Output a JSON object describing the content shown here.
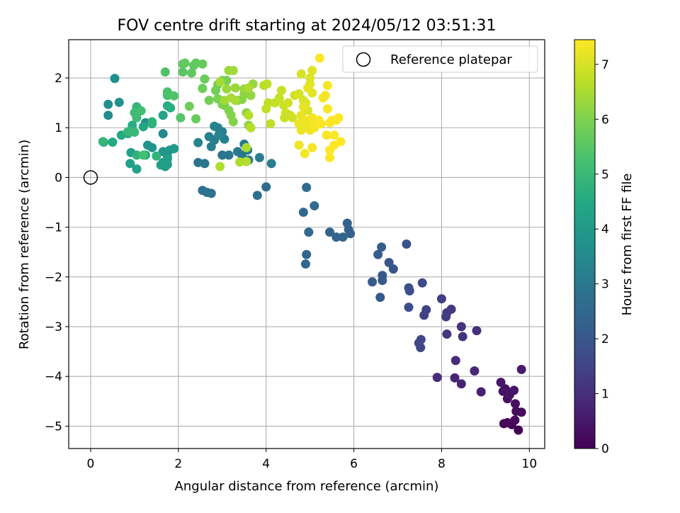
{
  "chart_data": {
    "type": "scatter",
    "title": "FOV centre drift starting at 2024/05/12 03:51:31",
    "xlabel": "Angular distance from reference (arcmin)",
    "ylabel": "Rotation from reference (arcmin)",
    "xlim": [
      -0.5,
      10.35
    ],
    "ylim": [
      -5.45,
      2.77
    ],
    "xticks": [
      0,
      2,
      4,
      6,
      8,
      10
    ],
    "yticks": [
      -5,
      -4,
      -3,
      -2,
      -1,
      0,
      1,
      2
    ],
    "xtick_labels": [
      "0",
      "2",
      "4",
      "6",
      "8",
      "10"
    ],
    "ytick_labels": [
      "−5",
      "−4",
      "−3",
      "−2",
      "−1",
      "0",
      "1",
      "2"
    ],
    "grid": true,
    "legend": {
      "position": "top-right",
      "label": "Reference platepar"
    },
    "reference_point": {
      "x": 0,
      "y": 0
    },
    "colorbar": {
      "label": "Hours from first FF file",
      "colormap": "viridis",
      "range": [
        0,
        7.45
      ],
      "ticks": [
        0,
        1,
        2,
        3,
        4,
        5,
        6,
        7
      ],
      "tick_labels": [
        "0",
        "1",
        "2",
        "3",
        "4",
        "5",
        "6",
        "7"
      ]
    },
    "points": [
      [
        9.75,
        -5.08,
        0.0
      ],
      [
        9.6,
        -4.97,
        0.05
      ],
      [
        9.5,
        -4.93,
        0.1
      ],
      [
        9.42,
        -4.95,
        0.12
      ],
      [
        9.67,
        -4.88,
        0.15
      ],
      [
        9.82,
        -4.72,
        0.2
      ],
      [
        9.7,
        -4.7,
        0.22
      ],
      [
        9.68,
        -4.55,
        0.28
      ],
      [
        9.5,
        -4.45,
        0.3
      ],
      [
        9.4,
        -4.3,
        0.33
      ],
      [
        9.45,
        -4.25,
        0.36
      ],
      [
        9.55,
        -4.37,
        0.4
      ],
      [
        9.65,
        -4.28,
        0.42
      ],
      [
        9.35,
        -4.12,
        0.48
      ],
      [
        9.82,
        -3.86,
        0.55
      ],
      [
        8.9,
        -4.31,
        0.65
      ],
      [
        8.45,
        -4.15,
        0.72
      ],
      [
        8.3,
        -4.03,
        0.78
      ],
      [
        8.75,
        -3.89,
        0.85
      ],
      [
        7.9,
        -4.02,
        0.9
      ],
      [
        8.32,
        -3.68,
        0.95
      ],
      [
        8.8,
        -3.08,
        1.05
      ],
      [
        8.45,
        -3.0,
        1.1
      ],
      [
        8.48,
        -3.2,
        1.12
      ],
      [
        8.12,
        -3.15,
        1.18
      ],
      [
        8.22,
        -2.65,
        1.25
      ],
      [
        8.1,
        -2.8,
        1.3
      ],
      [
        8.12,
        -2.72,
        1.32
      ],
      [
        8.0,
        -2.44,
        1.38
      ],
      [
        7.65,
        -2.66,
        1.45
      ],
      [
        7.6,
        -2.77,
        1.48
      ],
      [
        7.52,
        -3.42,
        1.55
      ],
      [
        7.48,
        -3.33,
        1.6
      ],
      [
        7.53,
        -3.26,
        1.62
      ],
      [
        7.56,
        -2.12,
        1.68
      ],
      [
        7.25,
        -2.61,
        1.75
      ],
      [
        7.27,
        -2.28,
        1.8
      ],
      [
        7.25,
        -2.22,
        1.82
      ],
      [
        7.2,
        -1.34,
        1.88
      ],
      [
        6.9,
        -1.84,
        1.95
      ],
      [
        6.8,
        -1.71,
        2.0
      ],
      [
        6.65,
        -1.97,
        2.05
      ],
      [
        6.65,
        -2.07,
        2.08
      ],
      [
        6.6,
        -2.41,
        2.1
      ],
      [
        6.42,
        -2.1,
        2.12
      ],
      [
        6.55,
        -1.55,
        2.18
      ],
      [
        6.63,
        -1.4,
        2.22
      ],
      [
        5.92,
        -1.13,
        2.28
      ],
      [
        5.85,
        -0.92,
        2.32
      ],
      [
        5.88,
        -1.05,
        2.35
      ],
      [
        5.75,
        -1.2,
        2.38
      ],
      [
        5.6,
        -1.2,
        2.4
      ],
      [
        5.45,
        -1.1,
        2.42
      ],
      [
        4.92,
        -1.55,
        2.45
      ],
      [
        4.9,
        -1.74,
        2.48
      ],
      [
        4.97,
        -1.1,
        2.5
      ],
      [
        4.85,
        -0.7,
        2.52
      ],
      [
        5.1,
        -0.57,
        2.55
      ],
      [
        4.92,
        -0.2,
        2.58
      ],
      [
        4.0,
        -0.19,
        2.65
      ],
      [
        3.8,
        -0.36,
        2.7
      ],
      [
        2.55,
        -0.26,
        2.75
      ],
      [
        2.65,
        -0.3,
        2.78
      ],
      [
        2.75,
        -0.32,
        2.8
      ],
      [
        2.45,
        0.3,
        2.85
      ],
      [
        2.6,
        0.28,
        2.88
      ],
      [
        3.0,
        0.45,
        2.9
      ],
      [
        3.15,
        0.45,
        2.95
      ],
      [
        3.35,
        0.52,
        3.0
      ],
      [
        3.45,
        0.45,
        3.02
      ],
      [
        3.5,
        0.67,
        3.05
      ],
      [
        3.58,
        0.55,
        3.08
      ],
      [
        3.6,
        0.35,
        3.1
      ],
      [
        3.85,
        0.4,
        3.12
      ],
      [
        4.12,
        0.28,
        3.15
      ],
      [
        2.75,
        0.62,
        3.18
      ],
      [
        2.82,
        0.75,
        3.2
      ],
      [
        3.0,
        0.92,
        3.22
      ],
      [
        3.05,
        0.77,
        3.25
      ],
      [
        2.7,
        0.82,
        3.28
      ],
      [
        2.82,
        1.03,
        3.3
      ],
      [
        2.9,
        1.0,
        3.32
      ],
      [
        2.92,
        0.85,
        3.35
      ],
      [
        2.45,
        0.7,
        3.38
      ],
      [
        1.65,
        0.88,
        3.45
      ],
      [
        1.05,
        1.35,
        3.5
      ],
      [
        1.25,
        1.1,
        3.55
      ],
      [
        0.4,
        1.25,
        3.6
      ],
      [
        0.4,
        1.47,
        3.65
      ],
      [
        0.55,
        1.99,
        3.7
      ],
      [
        0.65,
        1.51,
        3.75
      ],
      [
        1.3,
        0.65,
        3.8
      ],
      [
        1.4,
        0.6,
        3.85
      ],
      [
        1.65,
        0.52,
        3.9
      ],
      [
        1.75,
        0.42,
        3.95
      ],
      [
        1.8,
        0.55,
        4.0
      ],
      [
        1.9,
        0.58,
        4.02
      ],
      [
        1.65,
        0.3,
        4.05
      ],
      [
        1.75,
        0.26,
        4.1
      ],
      [
        1.7,
        0.22,
        4.12
      ],
      [
        1.75,
        0.37,
        4.15
      ],
      [
        1.6,
        0.25,
        4.18
      ],
      [
        0.9,
        0.28,
        4.2
      ],
      [
        0.92,
        0.5,
        4.25
      ],
      [
        1.05,
        0.17,
        4.28
      ],
      [
        1.25,
        0.45,
        4.3
      ],
      [
        1.65,
        1.25,
        4.35
      ],
      [
        1.2,
        1.02,
        4.4
      ],
      [
        0.3,
        0.71,
        4.45
      ],
      [
        0.5,
        0.71,
        4.5
      ],
      [
        0.7,
        0.85,
        4.52
      ],
      [
        0.85,
        0.88,
        4.55
      ],
      [
        0.95,
        1.05,
        4.6
      ],
      [
        1.1,
        1.35,
        4.62
      ],
      [
        1.75,
        1.44,
        4.65
      ],
      [
        1.82,
        1.4,
        4.68
      ],
      [
        1.05,
        0.45,
        4.72
      ],
      [
        1.4,
        1.08,
        4.75
      ],
      [
        1.5,
        0.43,
        4.78
      ],
      [
        1.4,
        1.12,
        4.8
      ],
      [
        1.05,
        1.42,
        4.85
      ],
      [
        0.28,
        0.72,
        4.9
      ],
      [
        0.85,
        0.92,
        4.95
      ],
      [
        1.0,
        0.91,
        5.0
      ],
      [
        1.05,
        1.2,
        5.05
      ],
      [
        1.0,
        1.3,
        5.1
      ],
      [
        1.15,
        1.34,
        5.15
      ],
      [
        1.2,
        0.45,
        5.2
      ],
      [
        1.75,
        1.65,
        5.25
      ],
      [
        1.75,
        1.72,
        5.3
      ],
      [
        1.7,
        2.12,
        5.35
      ],
      [
        1.9,
        1.64,
        5.4
      ],
      [
        2.05,
        1.2,
        5.45
      ],
      [
        2.1,
        2.12,
        5.5
      ],
      [
        2.1,
        2.28,
        5.55
      ],
      [
        2.35,
        2.25,
        5.58
      ],
      [
        2.3,
        2.1,
        5.6
      ],
      [
        2.4,
        2.3,
        5.62
      ],
      [
        2.15,
        2.3,
        5.65
      ],
      [
        2.55,
        2.28,
        5.68
      ],
      [
        2.4,
        1.18,
        5.7
      ],
      [
        2.55,
        1.79,
        5.72
      ],
      [
        2.6,
        1.98,
        5.75
      ],
      [
        2.55,
        1.79,
        5.78
      ],
      [
        2.25,
        1.43,
        5.8
      ],
      [
        2.7,
        1.55,
        5.82
      ],
      [
        2.85,
        1.75,
        5.85
      ],
      [
        2.9,
        1.87,
        5.88
      ],
      [
        3.0,
        1.95,
        5.9
      ],
      [
        3.1,
        1.95,
        5.92
      ],
      [
        2.9,
        1.58,
        5.95
      ],
      [
        3.0,
        1.47,
        5.98
      ],
      [
        3.05,
        1.45,
        6.0
      ],
      [
        3.15,
        1.35,
        6.02
      ],
      [
        3.2,
        1.25,
        6.05
      ],
      [
        3.25,
        1.12,
        6.08
      ],
      [
        3.35,
        1.55,
        6.1
      ],
      [
        3.45,
        1.57,
        6.12
      ],
      [
        3.5,
        1.68,
        6.15
      ],
      [
        3.55,
        1.3,
        6.18
      ],
      [
        3.6,
        1.05,
        6.2
      ],
      [
        3.65,
        1.65,
        6.22
      ],
      [
        3.7,
        1.88,
        6.25
      ],
      [
        3.5,
        1.78,
        6.28
      ],
      [
        3.3,
        1.8,
        6.3
      ],
      [
        3.1,
        1.78,
        6.32
      ],
      [
        3.15,
        2.15,
        6.35
      ],
      [
        3.25,
        2.15,
        6.38
      ],
      [
        3.05,
        1.55,
        6.4
      ],
      [
        2.95,
        1.92,
        6.42
      ],
      [
        3.2,
        1.6,
        6.45
      ],
      [
        3.3,
        1.55,
        6.48
      ],
      [
        3.55,
        0.6,
        6.5
      ],
      [
        3.6,
        1.8,
        6.52
      ],
      [
        3.4,
        0.31,
        6.55
      ],
      [
        2.95,
        0.22,
        6.58
      ],
      [
        3.55,
        0.32,
        6.6
      ],
      [
        3.6,
        1.25,
        6.62
      ],
      [
        3.65,
        1.0,
        6.65
      ],
      [
        3.95,
        1.85,
        6.68
      ],
      [
        4.02,
        1.88,
        6.7
      ],
      [
        4.05,
        1.5,
        6.72
      ],
      [
        4.0,
        1.38,
        6.74
      ],
      [
        4.1,
        1.08,
        6.76
      ],
      [
        4.2,
        1.5,
        6.78
      ],
      [
        4.3,
        1.6,
        6.8
      ],
      [
        4.35,
        1.75,
        6.82
      ],
      [
        4.4,
        1.45,
        6.84
      ],
      [
        4.42,
        1.2,
        6.86
      ],
      [
        4.45,
        1.3,
        6.88
      ],
      [
        4.5,
        1.5,
        6.9
      ],
      [
        4.55,
        1.25,
        6.92
      ],
      [
        4.6,
        1.2,
        6.94
      ],
      [
        4.65,
        1.65,
        6.96
      ],
      [
        4.75,
        1.68,
        6.98
      ],
      [
        4.8,
        2.08,
        7.0
      ],
      [
        4.85,
        1.55,
        7.02
      ],
      [
        4.9,
        1.5,
        7.04
      ],
      [
        4.95,
        1.35,
        7.06
      ],
      [
        5.0,
        2.0,
        7.08
      ],
      [
        5.05,
        2.15,
        7.1
      ],
      [
        5.0,
        1.88,
        7.12
      ],
      [
        5.05,
        1.7,
        7.14
      ],
      [
        4.95,
        1.8,
        7.16
      ],
      [
        4.85,
        1.42,
        7.18
      ],
      [
        4.8,
        1.25,
        7.2
      ],
      [
        4.75,
        1.08,
        7.22
      ],
      [
        4.8,
        0.95,
        7.24
      ],
      [
        4.9,
        1.15,
        7.26
      ],
      [
        4.95,
        1.05,
        7.28
      ],
      [
        5.0,
        0.95,
        7.3
      ],
      [
        5.05,
        1.2,
        7.32
      ],
      [
        5.1,
        1.0,
        7.34
      ],
      [
        5.15,
        1.1,
        7.36
      ],
      [
        5.2,
        1.15,
        7.38
      ],
      [
        5.25,
        1.08,
        7.4
      ],
      [
        4.75,
        0.65,
        7.3
      ],
      [
        4.88,
        0.48,
        7.32
      ],
      [
        5.05,
        0.6,
        7.34
      ],
      [
        5.22,
        2.4,
        7.42
      ],
      [
        5.3,
        1.6,
        7.35
      ],
      [
        5.35,
        1.65,
        7.36
      ],
      [
        5.4,
        1.85,
        7.38
      ],
      [
        5.4,
        1.38,
        7.4
      ],
      [
        5.45,
        1.1,
        7.41
      ],
      [
        5.5,
        1.15,
        7.42
      ],
      [
        5.55,
        0.85,
        7.43
      ],
      [
        5.6,
        1.15,
        7.44
      ],
      [
        5.38,
        0.85,
        7.4
      ],
      [
        5.45,
        0.55,
        7.42
      ],
      [
        5.45,
        0.4,
        7.43
      ],
      [
        5.55,
        0.65,
        7.44
      ],
      [
        5.7,
        0.72,
        7.45
      ],
      [
        5.65,
        1.2,
        7.45
      ]
    ]
  }
}
